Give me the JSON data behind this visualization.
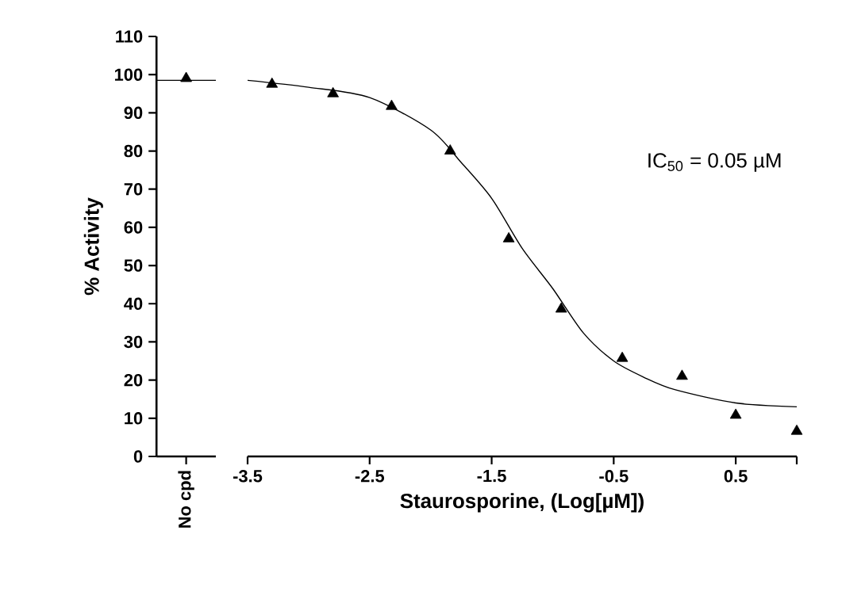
{
  "chart_data": [
    {
      "type": "scatter",
      "categories": [
        "No cpd"
      ],
      "ylabel": "% Activity",
      "ylim": [
        0,
        110
      ],
      "yticks": [
        0,
        10,
        20,
        30,
        40,
        50,
        60,
        70,
        80,
        90,
        100,
        110
      ],
      "marker": "triangle",
      "ref_lines": [
        {
          "axis": "y",
          "value": 98.5,
          "color": "#000000"
        }
      ],
      "series": [
        {
          "color": "#000000",
          "values": [
            99
          ]
        }
      ]
    },
    {
      "type": "scatter",
      "xlabel": "Staurosporine, (Log[µM])",
      "xlim": [
        -3.5,
        1
      ],
      "xticks": [
        -3.5,
        -2.5,
        -1.5,
        -0.5,
        0.5,
        {
          "value": 1,
          "label": null
        }
      ],
      "ylim": [
        0,
        110
      ],
      "tick_labels": "x",
      "marker": "triangle",
      "annotations": [
        "IC$_{50}$ = 0.05 µM"
      ],
      "series": [
        {
          "color": "#000000",
          "x": [
            -3.3,
            -2.8,
            -2.32,
            -1.84,
            -1.36,
            -0.93,
            -0.43,
            0.06,
            0.5,
            1.0
          ],
          "values": [
            97.5,
            95,
            91.7,
            80,
            57,
            38.6,
            25.7,
            21,
            10.8,
            6.6
          ]
        },
        {
          "type": "line",
          "color": "#000000",
          "marker": "none",
          "x": [
            -3.5,
            -3,
            -2.5,
            -2,
            -1.75,
            -1.5,
            -1.25,
            -1,
            -0.75,
            -0.5,
            -0.25,
            0,
            0.5,
            1
          ],
          "values": [
            98.5,
            96.7,
            94,
            85.5,
            77,
            67.6,
            54.5,
            44,
            32.4,
            25,
            20.7,
            17.5,
            14,
            13
          ]
        }
      ]
    }
  ]
}
